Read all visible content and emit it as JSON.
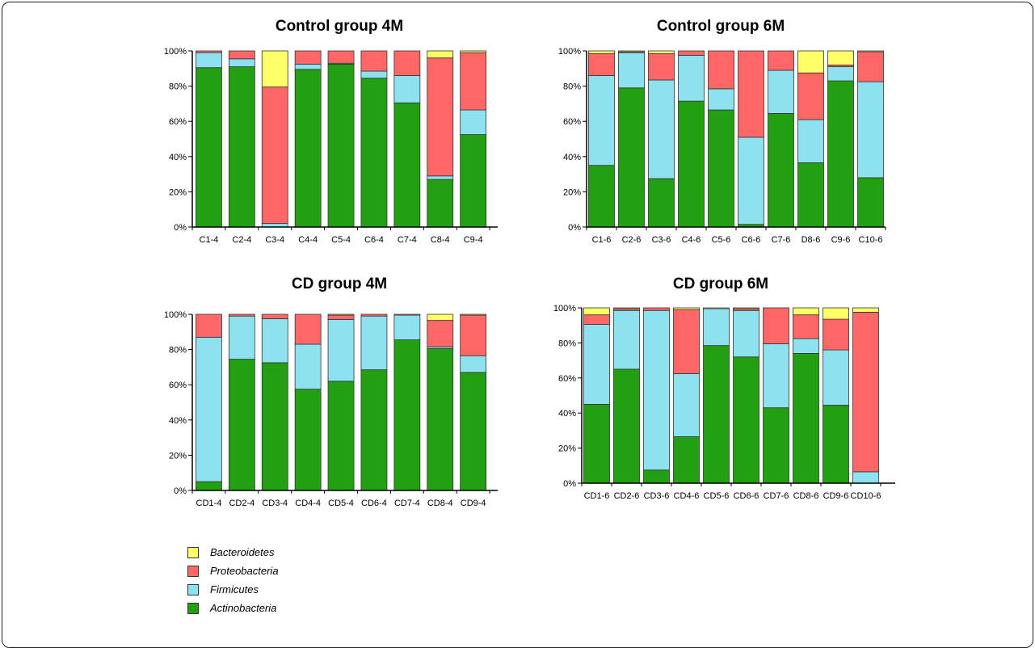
{
  "colors": {
    "Bacteroidetes": "#ffff66",
    "Proteobacteria": "#ff6666",
    "Firmicutes": "#8ee2f0",
    "Actinobacteria": "#22a012"
  },
  "legend": [
    {
      "label": "Bacteroidetes",
      "color": "#ffff66"
    },
    {
      "label": "Proteobacteria",
      "color": "#ff6666"
    },
    {
      "label": "Firmicutes",
      "color": "#8ee2f0"
    },
    {
      "label": "Actinobacteria",
      "color": "#22a012"
    }
  ],
  "chart_data": [
    {
      "type": "bar",
      "stacked": true,
      "title": "Control group 4M",
      "categories": [
        "C1-4",
        "C2-4",
        "C3-4",
        "C4-4",
        "C5-4",
        "C6-4",
        "C7-4",
        "C8-4",
        "C9-4"
      ],
      "yticks": [
        "0%",
        "20%",
        "40%",
        "60%",
        "80%",
        "100%"
      ],
      "ylim": [
        0,
        100
      ],
      "series": [
        {
          "name": "Actinobacteria",
          "values": [
            90.5,
            91,
            0,
            89.5,
            92.5,
            84.5,
            70.5,
            27,
            52.5
          ]
        },
        {
          "name": "Firmicutes",
          "values": [
            8.5,
            4.5,
            2,
            3,
            0.5,
            4,
            15.5,
            2,
            14
          ]
        },
        {
          "name": "Proteobacteria",
          "values": [
            1,
            4.5,
            77.5,
            7.5,
            7,
            11.5,
            14,
            67,
            32.5
          ]
        },
        {
          "name": "Bacteroidetes",
          "values": [
            0,
            0,
            20.5,
            0,
            0,
            0,
            0,
            4,
            1
          ]
        }
      ]
    },
    {
      "type": "bar",
      "stacked": true,
      "title": "Control group 6M",
      "categories": [
        "C1-6",
        "C2-6",
        "C3-6",
        "C4-6",
        "C5-6",
        "C6-6",
        "C7-6",
        "D8-6",
        "C9-6",
        "C10-6"
      ],
      "yticks": [
        "0%",
        "20%",
        "40%",
        "60%",
        "80%",
        "100%"
      ],
      "ylim": [
        0,
        100
      ],
      "series": [
        {
          "name": "Actinobacteria",
          "values": [
            35,
            79,
            27.5,
            71.5,
            66.5,
            1.5,
            64.5,
            36.5,
            83,
            28
          ]
        },
        {
          "name": "Firmicutes",
          "values": [
            51,
            20,
            56,
            26,
            12,
            49.5,
            24.5,
            24.5,
            8,
            54.5
          ]
        },
        {
          "name": "Proteobacteria",
          "values": [
            12.5,
            0.5,
            15,
            2.5,
            21.5,
            49,
            11,
            26.5,
            1,
            17
          ]
        },
        {
          "name": "Bacteroidetes",
          "values": [
            1.5,
            0.5,
            1.5,
            0,
            0,
            0,
            0,
            12.5,
            8,
            0.5
          ]
        }
      ]
    },
    {
      "type": "bar",
      "stacked": true,
      "title": "CD group 4M",
      "categories": [
        "CD1-4",
        "CD2-4",
        "CD3-4",
        "CD4-4",
        "CD5-4",
        "CD6-4",
        "CD7-4",
        "CD8-4",
        "CD9-4"
      ],
      "yticks": [
        "0%",
        "20%",
        "40%",
        "60%",
        "80%",
        "100%"
      ],
      "ylim": [
        0,
        100
      ],
      "series": [
        {
          "name": "Actinobacteria",
          "values": [
            5,
            74.5,
            72.5,
            57.5,
            62,
            68.5,
            85.5,
            80.5,
            67
          ]
        },
        {
          "name": "Firmicutes",
          "values": [
            82,
            24.5,
            25,
            25.5,
            35,
            30.5,
            14,
            1,
            9.5
          ]
        },
        {
          "name": "Proteobacteria",
          "values": [
            13,
            1,
            2.5,
            17,
            2.5,
            1,
            0.5,
            15,
            23
          ]
        },
        {
          "name": "Bacteroidetes",
          "values": [
            0,
            0,
            0,
            0,
            0.5,
            0,
            0,
            3.5,
            0.5
          ]
        }
      ]
    },
    {
      "type": "bar",
      "stacked": true,
      "title": "CD group 6M",
      "categories": [
        "CD1-6",
        "CD2-6",
        "CD3-6",
        "CD4-6",
        "CD5-6",
        "CD6-6",
        "CD7-6",
        "CD8-6",
        "CD9-6",
        "CD10-6"
      ],
      "yticks": [
        "0%",
        "20%",
        "40%",
        "60%",
        "80%",
        "100%"
      ],
      "ylim": [
        0,
        100
      ],
      "series": [
        {
          "name": "Actinobacteria",
          "values": [
            45,
            65,
            7.5,
            26.5,
            78.5,
            72,
            43,
            74,
            44.5,
            0
          ]
        },
        {
          "name": "Firmicutes",
          "values": [
            45.5,
            33.5,
            91,
            36,
            21,
            26.5,
            36.5,
            8.5,
            31.5,
            6.5
          ]
        },
        {
          "name": "Proteobacteria",
          "values": [
            5.5,
            1,
            1.5,
            36.5,
            0,
            1,
            20.5,
            13.5,
            17.5,
            91
          ]
        },
        {
          "name": "Bacteroidetes",
          "values": [
            4,
            0.5,
            0,
            1,
            0.5,
            0.5,
            0,
            4,
            6.5,
            2.5
          ]
        }
      ]
    }
  ]
}
